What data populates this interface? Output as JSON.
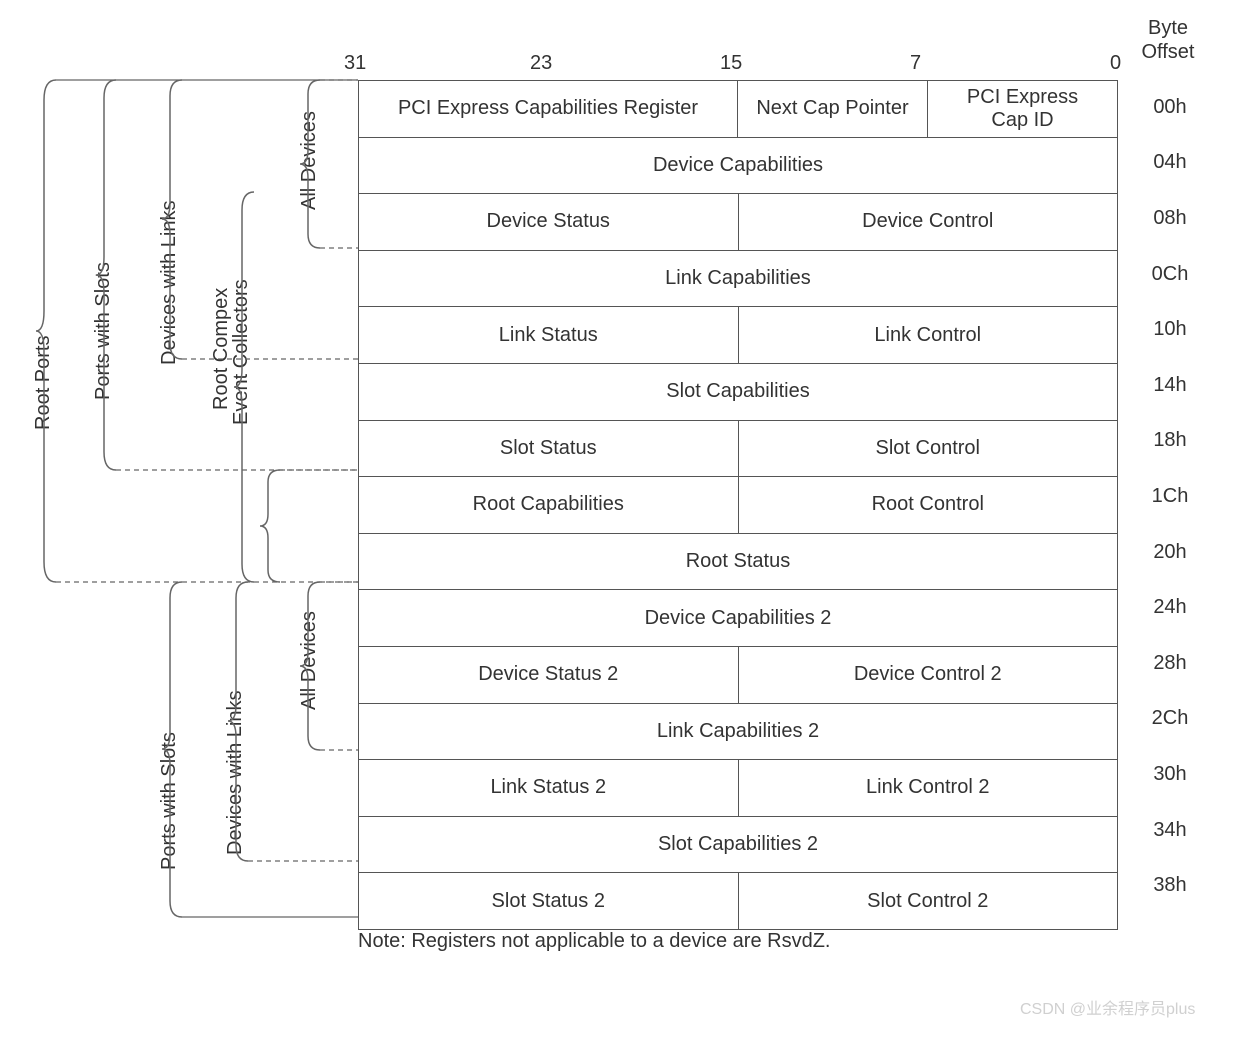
{
  "header": {
    "byte_offset": "Byte\nOffset"
  },
  "bits": [
    "31",
    "23",
    "15",
    "7",
    "0"
  ],
  "rows": [
    {
      "offset": "00h",
      "cells": [
        {
          "text": "PCI Express Capabilities Register",
          "span": 16
        },
        {
          "text": "Next Cap Pointer",
          "span": 8
        },
        {
          "text": "PCI Express\nCap ID",
          "span": 8
        }
      ]
    },
    {
      "offset": "04h",
      "cells": [
        {
          "text": "Device Capabilities",
          "span": 32
        }
      ]
    },
    {
      "offset": "08h",
      "cells": [
        {
          "text": "Device Status",
          "span": 16
        },
        {
          "text": "Device Control",
          "span": 16
        }
      ]
    },
    {
      "offset": "0Ch",
      "cells": [
        {
          "text": "Link Capabilities",
          "span": 32
        }
      ]
    },
    {
      "offset": "10h",
      "cells": [
        {
          "text": "Link Status",
          "span": 16
        },
        {
          "text": "Link Control",
          "span": 16
        }
      ]
    },
    {
      "offset": "14h",
      "cells": [
        {
          "text": "Slot Capabilities",
          "span": 32
        }
      ]
    },
    {
      "offset": "18h",
      "cells": [
        {
          "text": "Slot Status",
          "span": 16
        },
        {
          "text": "Slot Control",
          "span": 16
        }
      ]
    },
    {
      "offset": "1Ch",
      "cells": [
        {
          "text": "Root Capabilities",
          "span": 16
        },
        {
          "text": "Root Control",
          "span": 16
        }
      ]
    },
    {
      "offset": "20h",
      "cells": [
        {
          "text": "Root Status",
          "span": 32
        }
      ]
    },
    {
      "offset": "24h",
      "cells": [
        {
          "text": "Device Capabilities 2",
          "span": 32
        }
      ]
    },
    {
      "offset": "28h",
      "cells": [
        {
          "text": "Device Status 2",
          "span": 16
        },
        {
          "text": "Device Control 2",
          "span": 16
        }
      ]
    },
    {
      "offset": "2Ch",
      "cells": [
        {
          "text": "Link Capabilities 2",
          "span": 32
        }
      ]
    },
    {
      "offset": "30h",
      "cells": [
        {
          "text": "Link Status 2",
          "span": 16
        },
        {
          "text": "Link Control 2",
          "span": 16
        }
      ]
    },
    {
      "offset": "34h",
      "cells": [
        {
          "text": "Slot Capabilities 2",
          "span": 32
        }
      ]
    },
    {
      "offset": "38h",
      "cells": [
        {
          "text": "Slot Status 2",
          "span": 16
        },
        {
          "text": "Slot Control 2",
          "span": 16
        }
      ]
    }
  ],
  "note": "Note:  Registers not applicable to a device are RsvdZ.",
  "watermark": "CSDN @业余程序员plus",
  "groups": {
    "root_ports": "Root Ports",
    "ports_with_slots": "Ports with Slots",
    "devices_with_links": "Devices with Links",
    "root_complex_event_collectors_1": "Root Compex",
    "root_complex_event_collectors_2": "Event Collectors",
    "all_devices": "All Devices"
  },
  "layout": {
    "tableLeft": 358,
    "tableTop": 80,
    "tableWidth": 758,
    "rowHeight": 55.6,
    "bitPositions": {
      "31": 344,
      "23": 530,
      "15": 720,
      "7": 910,
      "0": 1110
    },
    "borderColor": "#555555",
    "textColor": "#333333",
    "braceColor": "#666666",
    "fontSize": 20
  }
}
